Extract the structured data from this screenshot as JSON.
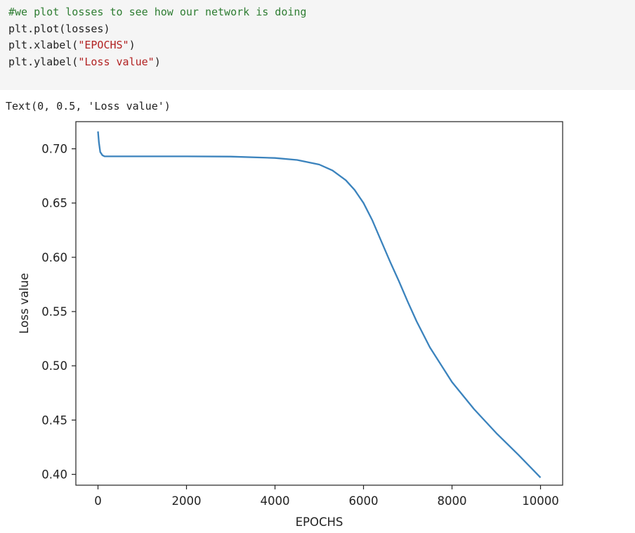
{
  "code_cell": {
    "lines": [
      {
        "parts": [
          {
            "text": "#we plot losses to see how our network is doing",
            "kind": "comment"
          }
        ]
      },
      {
        "parts": [
          {
            "text": "plt.plot(losses)",
            "kind": "plain"
          }
        ]
      },
      {
        "parts": [
          {
            "text": "plt.xlabel(",
            "kind": "plain"
          },
          {
            "text": "\"EPOCHS\"",
            "kind": "string"
          },
          {
            "text": ")",
            "kind": "plain"
          }
        ]
      },
      {
        "parts": [
          {
            "text": "plt.ylabel(",
            "kind": "plain"
          },
          {
            "text": "\"Loss value\"",
            "kind": "string"
          },
          {
            "text": ")",
            "kind": "plain"
          }
        ]
      }
    ]
  },
  "output": {
    "text": "Text(0, 0.5, 'Loss value')"
  },
  "chart_data": {
    "type": "line",
    "xlabel": "EPOCHS",
    "ylabel": "Loss value",
    "xlim": [
      -500,
      10500
    ],
    "ylim": [
      0.39,
      0.725
    ],
    "x_ticks": [
      0,
      2000,
      4000,
      6000,
      8000,
      10000
    ],
    "x_tick_labels": [
      "0",
      "2000",
      "4000",
      "6000",
      "8000",
      "10000"
    ],
    "y_ticks": [
      0.4,
      0.45,
      0.5,
      0.55,
      0.6,
      0.65,
      0.7
    ],
    "y_tick_labels": [
      "0.40",
      "0.45",
      "0.50",
      "0.55",
      "0.60",
      "0.65",
      "0.70"
    ],
    "grid": false,
    "line_color": "#3b83bd",
    "series": [
      {
        "x": [
          0,
          20,
          50,
          100,
          150,
          200,
          500,
          1000,
          2000,
          3000,
          4000,
          4500,
          5000,
          5300,
          5600,
          5800,
          6000,
          6200,
          6400,
          6600,
          6800,
          7000,
          7200,
          7500,
          8000,
          8500,
          9000,
          9500,
          10000
        ],
        "values": [
          0.716,
          0.706,
          0.697,
          0.694,
          0.693,
          0.693,
          0.693,
          0.693,
          0.693,
          0.6928,
          0.6915,
          0.6897,
          0.6855,
          0.68,
          0.671,
          0.662,
          0.65,
          0.634,
          0.615,
          0.596,
          0.578,
          0.559,
          0.541,
          0.517,
          0.485,
          0.46,
          0.438,
          0.418,
          0.397
        ]
      }
    ]
  }
}
